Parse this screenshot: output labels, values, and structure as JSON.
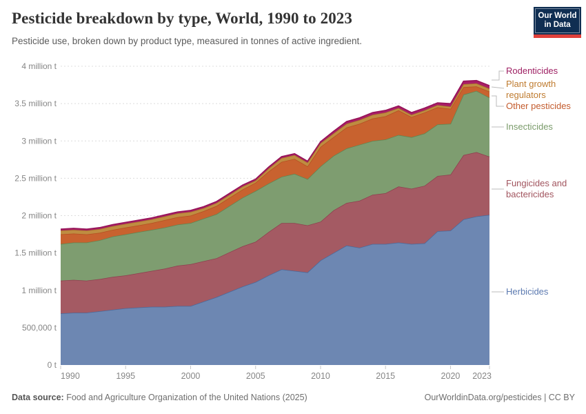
{
  "header": {
    "title": "Pesticide breakdown by type, World, 1990 to 2023",
    "subtitle": "Pesticide use, broken down by product type, measured in tonnes of active ingredient.",
    "logo": {
      "line1": "Our World",
      "line2": "in Data",
      "bg_color": "#0f2e52",
      "bar_color": "#e0403a"
    }
  },
  "footer": {
    "source_label": "Data source:",
    "source_text": " Food and Agriculture Organization of the United Nations (2025)",
    "right_text": "OurWorldinData.org/pesticides | CC BY"
  },
  "legend": {
    "items": [
      {
        "id": "rodenticides",
        "label": "Rodenticides",
        "color": "#9e2063"
      },
      {
        "id": "plant-growth-regulators",
        "label": "Plant growth regulators",
        "color": "#bf7b2f"
      },
      {
        "id": "other-pesticides",
        "label": "Other pesticides",
        "color": "#c35b2d"
      },
      {
        "id": "insecticides",
        "label": "Insecticides",
        "color": "#7a9b6a"
      },
      {
        "id": "fungicides-bactericides",
        "label": "Fungicides and bactericides",
        "color": "#a1545e"
      },
      {
        "id": "herbicides",
        "label": "Herbicides",
        "color": "#5c7ab0"
      }
    ]
  },
  "chart_data": {
    "type": "area",
    "stacked": true,
    "title": "Pesticide breakdown by type, World, 1990 to 2023",
    "ylabel": "tonnes of active ingredient",
    "ylim": [
      0,
      4000000
    ],
    "grid": "horizontal-dashed",
    "legend_position": "right",
    "x": [
      1990,
      1991,
      1992,
      1993,
      1994,
      1995,
      1996,
      1997,
      1998,
      1999,
      2000,
      2001,
      2002,
      2003,
      2004,
      2005,
      2006,
      2007,
      2008,
      2009,
      2010,
      2011,
      2012,
      2013,
      2014,
      2015,
      2016,
      2017,
      2018,
      2019,
      2020,
      2021,
      2022,
      2023
    ],
    "x_ticks": [
      {
        "value": 1990,
        "label": "1990"
      },
      {
        "value": 1995,
        "label": "1995"
      },
      {
        "value": 2000,
        "label": "2000"
      },
      {
        "value": 2005,
        "label": "2005"
      },
      {
        "value": 2010,
        "label": "2010"
      },
      {
        "value": 2015,
        "label": "2015"
      },
      {
        "value": 2020,
        "label": "2020"
      },
      {
        "value": 2023,
        "label": "2023"
      }
    ],
    "y_ticks": [
      {
        "value": 0,
        "label": "0 t"
      },
      {
        "value": 500000,
        "label": "500,000 t"
      },
      {
        "value": 1000000,
        "label": "1 million t"
      },
      {
        "value": 1500000,
        "label": "1.5 million t"
      },
      {
        "value": 2000000,
        "label": "2 million t"
      },
      {
        "value": 2500000,
        "label": "2.5 million t"
      },
      {
        "value": 3000000,
        "label": "3 million t"
      },
      {
        "value": 3500000,
        "label": "3.5 million t"
      },
      {
        "value": 4000000,
        "label": "4 million t"
      }
    ],
    "series": [
      {
        "name": "Herbicides",
        "fill": "#6d87b2",
        "line": "#49699b",
        "values": [
          690000,
          700000,
          700000,
          720000,
          740000,
          760000,
          770000,
          780000,
          780000,
          790000,
          790000,
          850000,
          910000,
          980000,
          1050000,
          1110000,
          1200000,
          1280000,
          1260000,
          1240000,
          1400000,
          1500000,
          1600000,
          1570000,
          1620000,
          1620000,
          1640000,
          1620000,
          1630000,
          1790000,
          1800000,
          1950000,
          1990000,
          2010000
        ]
      },
      {
        "name": "Fungicides and bactericides",
        "fill": "#a45a63",
        "line": "#8d3f4e",
        "values": [
          440000,
          440000,
          430000,
          430000,
          440000,
          440000,
          460000,
          480000,
          510000,
          540000,
          560000,
          540000,
          520000,
          530000,
          540000,
          540000,
          580000,
          620000,
          640000,
          630000,
          520000,
          570000,
          570000,
          630000,
          660000,
          680000,
          750000,
          740000,
          770000,
          740000,
          750000,
          860000,
          860000,
          780000
        ]
      },
      {
        "name": "Insecticides",
        "fill": "#7e9d70",
        "line": "#5f8551",
        "values": [
          490000,
          500000,
          510000,
          520000,
          540000,
          550000,
          550000,
          550000,
          550000,
          550000,
          550000,
          570000,
          590000,
          620000,
          650000,
          680000,
          650000,
          620000,
          660000,
          620000,
          740000,
          730000,
          730000,
          750000,
          720000,
          720000,
          690000,
          690000,
          700000,
          690000,
          680000,
          810000,
          820000,
          790000
        ]
      },
      {
        "name": "Other pesticides",
        "fill": "#c8622f",
        "line": "#b34f21",
        "values": [
          130000,
          120000,
          110000,
          100000,
          90000,
          90000,
          90000,
          90000,
          100000,
          100000,
          100000,
          100000,
          110000,
          110000,
          110000,
          110000,
          160000,
          200000,
          200000,
          170000,
          260000,
          250000,
          280000,
          280000,
          300000,
          310000,
          330000,
          270000,
          280000,
          230000,
          200000,
          100000,
          60000,
          80000
        ]
      },
      {
        "name": "Plant growth regulators",
        "fill": "#bf8c41",
        "line": "#a87728",
        "values": [
          50000,
          50000,
          50000,
          50000,
          50000,
          50000,
          50000,
          50000,
          50000,
          50000,
          50000,
          40000,
          40000,
          40000,
          40000,
          30000,
          40000,
          50000,
          50000,
          50000,
          50000,
          50000,
          50000,
          50000,
          50000,
          50000,
          30000,
          30000,
          30000,
          30000,
          30000,
          40000,
          40000,
          40000
        ]
      },
      {
        "name": "Rodenticides",
        "fill": "#a91e66",
        "line": "#951357",
        "values": [
          20000,
          20000,
          20000,
          20000,
          20000,
          20000,
          20000,
          20000,
          20000,
          20000,
          20000,
          20000,
          20000,
          20000,
          20000,
          20000,
          20000,
          20000,
          20000,
          20000,
          20000,
          30000,
          30000,
          30000,
          30000,
          30000,
          30000,
          30000,
          30000,
          30000,
          40000,
          40000,
          40000,
          40000
        ]
      }
    ]
  }
}
